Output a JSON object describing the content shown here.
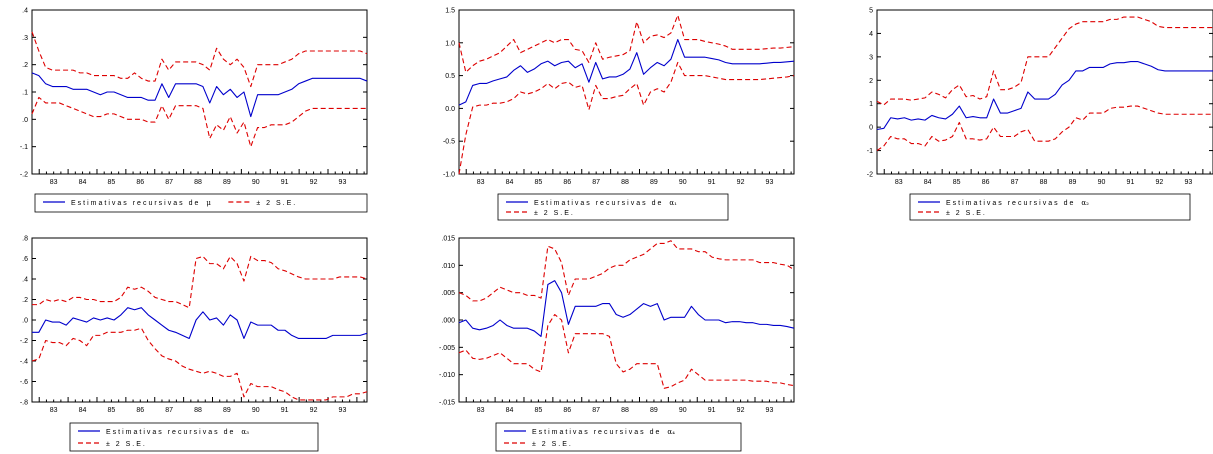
{
  "colors": {
    "estimate": "#0000cc",
    "band": "#dd0000",
    "axis": "#000000"
  },
  "chart_data": [
    {
      "type": "line",
      "x_tick_labels": [
        "83",
        "84",
        "85",
        "86",
        "87",
        "88",
        "89",
        "90",
        "91",
        "92",
        "93"
      ],
      "y_tick_labels": [
        ".4",
        ".3",
        ".2",
        ".1",
        ".0",
        "-.1",
        "-.2"
      ],
      "ylim": [
        -0.2,
        0.4
      ],
      "legend": {
        "estimate_label": "Estimativas recursivas de",
        "estimate_symbol": "μ",
        "band_label": "± 2 S.E.",
        "layout": "one-row"
      },
      "estimate": [
        0.17,
        0.16,
        0.13,
        0.12,
        0.12,
        0.12,
        0.11,
        0.11,
        0.11,
        0.1,
        0.09,
        0.1,
        0.1,
        0.09,
        0.08,
        0.08,
        0.08,
        0.07,
        0.07,
        0.13,
        0.08,
        0.13,
        0.13,
        0.13,
        0.13,
        0.12,
        0.06,
        0.12,
        0.09,
        0.11,
        0.08,
        0.1,
        0.01,
        0.09,
        0.09,
        0.09,
        0.09,
        0.1,
        0.11,
        0.13,
        0.14,
        0.15,
        0.15,
        0.15,
        0.15,
        0.15,
        0.15,
        0.15,
        0.15,
        0.14
      ],
      "upper": [
        0.32,
        0.25,
        0.19,
        0.18,
        0.18,
        0.18,
        0.18,
        0.17,
        0.17,
        0.16,
        0.16,
        0.16,
        0.16,
        0.15,
        0.15,
        0.17,
        0.15,
        0.14,
        0.14,
        0.22,
        0.18,
        0.21,
        0.21,
        0.21,
        0.21,
        0.2,
        0.18,
        0.26,
        0.22,
        0.2,
        0.22,
        0.19,
        0.12,
        0.2,
        0.2,
        0.2,
        0.2,
        0.21,
        0.22,
        0.24,
        0.25,
        0.25,
        0.25,
        0.25,
        0.25,
        0.25,
        0.25,
        0.25,
        0.25,
        0.24
      ],
      "lower": [
        0.02,
        0.08,
        0.06,
        0.06,
        0.06,
        0.05,
        0.04,
        0.03,
        0.02,
        0.01,
        0.01,
        0.02,
        0.02,
        0.01,
        0.0,
        0.0,
        0.0,
        -0.01,
        -0.01,
        0.05,
        0.0,
        0.05,
        0.05,
        0.05,
        0.05,
        0.04,
        -0.07,
        -0.02,
        -0.04,
        0.01,
        -0.05,
        -0.01,
        -0.1,
        -0.03,
        -0.03,
        -0.02,
        -0.02,
        -0.02,
        -0.01,
        0.01,
        0.03,
        0.04,
        0.04,
        0.04,
        0.04,
        0.04,
        0.04,
        0.04,
        0.04,
        0.04
      ]
    },
    {
      "type": "line",
      "x_tick_labels": [
        "83",
        "84",
        "85",
        "86",
        "87",
        "88",
        "89",
        "90",
        "91",
        "92",
        "93"
      ],
      "y_tick_labels": [
        "1.5",
        "1.0",
        "0.5",
        "0.0",
        "-0.5",
        "-1.0"
      ],
      "ylim": [
        -1.0,
        1.5
      ],
      "legend": {
        "estimate_label": "Estimativas recursivas de",
        "estimate_symbol": "α₁",
        "band_label": "± 2 S.E.",
        "layout": "two-row"
      },
      "estimate": [
        0.05,
        0.1,
        0.35,
        0.38,
        0.38,
        0.42,
        0.45,
        0.48,
        0.58,
        0.65,
        0.55,
        0.6,
        0.68,
        0.72,
        0.65,
        0.7,
        0.72,
        0.62,
        0.68,
        0.4,
        0.7,
        0.45,
        0.48,
        0.48,
        0.52,
        0.6,
        0.85,
        0.52,
        0.62,
        0.7,
        0.65,
        0.75,
        1.05,
        0.78,
        0.78,
        0.78,
        0.78,
        0.76,
        0.74,
        0.7,
        0.68,
        0.68,
        0.68,
        0.68,
        0.68,
        0.69,
        0.7,
        0.7,
        0.71,
        0.72
      ],
      "upper": [
        1.0,
        0.55,
        0.65,
        0.72,
        0.75,
        0.8,
        0.85,
        0.95,
        1.05,
        0.85,
        0.9,
        0.95,
        1.0,
        1.05,
        1.0,
        1.05,
        1.05,
        0.9,
        0.88,
        0.7,
        1.0,
        0.75,
        0.78,
        0.8,
        0.82,
        0.88,
        1.32,
        1.0,
        1.1,
        1.12,
        1.08,
        1.15,
        1.42,
        1.05,
        1.05,
        1.05,
        1.02,
        1.0,
        0.98,
        0.95,
        0.9,
        0.9,
        0.9,
        0.9,
        0.9,
        0.91,
        0.92,
        0.92,
        0.93,
        0.94
      ],
      "lower": [
        -1.0,
        -0.4,
        0.02,
        0.05,
        0.05,
        0.08,
        0.08,
        0.1,
        0.15,
        0.25,
        0.22,
        0.25,
        0.3,
        0.38,
        0.3,
        0.38,
        0.4,
        0.32,
        0.35,
        -0.02,
        0.35,
        0.15,
        0.15,
        0.18,
        0.2,
        0.3,
        0.38,
        0.05,
        0.25,
        0.3,
        0.25,
        0.4,
        0.7,
        0.5,
        0.5,
        0.5,
        0.5,
        0.48,
        0.46,
        0.44,
        0.44,
        0.44,
        0.44,
        0.44,
        0.44,
        0.45,
        0.46,
        0.47,
        0.48,
        0.5
      ]
    },
    {
      "type": "line",
      "x_tick_labels": [
        "83",
        "84",
        "85",
        "86",
        "87",
        "88",
        "89",
        "90",
        "91",
        "92",
        "93"
      ],
      "y_tick_labels": [
        "5",
        "4",
        "3",
        "2",
        "1",
        "0",
        "-1",
        "-2"
      ],
      "ylim": [
        -2,
        5
      ],
      "legend": {
        "estimate_label": "Estimativas recursivas de",
        "estimate_symbol": "α₂",
        "band_label": "± 2 S.E.",
        "layout": "two-row"
      },
      "estimate": [
        -0.1,
        -0.05,
        0.4,
        0.35,
        0.4,
        0.3,
        0.35,
        0.3,
        0.5,
        0.4,
        0.35,
        0.55,
        0.9,
        0.4,
        0.45,
        0.4,
        0.4,
        1.2,
        0.6,
        0.6,
        0.7,
        0.8,
        1.5,
        1.2,
        1.2,
        1.2,
        1.4,
        1.8,
        2.0,
        2.4,
        2.4,
        2.55,
        2.55,
        2.55,
        2.7,
        2.75,
        2.75,
        2.8,
        2.8,
        2.7,
        2.6,
        2.45,
        2.4,
        2.4,
        2.4,
        2.4,
        2.4,
        2.4,
        2.4,
        2.4
      ],
      "upper": [
        1.1,
        0.95,
        1.2,
        1.2,
        1.2,
        1.15,
        1.2,
        1.25,
        1.5,
        1.4,
        1.25,
        1.6,
        1.8,
        1.3,
        1.35,
        1.2,
        1.3,
        2.4,
        1.6,
        1.6,
        1.7,
        1.9,
        3.0,
        3.0,
        3.0,
        3.0,
        3.4,
        3.8,
        4.2,
        4.4,
        4.5,
        4.5,
        4.5,
        4.5,
        4.6,
        4.6,
        4.7,
        4.7,
        4.7,
        4.6,
        4.5,
        4.3,
        4.25,
        4.25,
        4.25,
        4.25,
        4.25,
        4.25,
        4.25,
        4.25
      ],
      "lower": [
        -1.0,
        -0.8,
        -0.4,
        -0.5,
        -0.5,
        -0.7,
        -0.7,
        -0.8,
        -0.4,
        -0.6,
        -0.55,
        -0.4,
        0.2,
        -0.5,
        -0.5,
        -0.55,
        -0.5,
        0.0,
        -0.4,
        -0.4,
        -0.4,
        -0.2,
        -0.1,
        -0.6,
        -0.6,
        -0.6,
        -0.5,
        -0.2,
        0.0,
        0.4,
        0.3,
        0.6,
        0.6,
        0.6,
        0.8,
        0.85,
        0.85,
        0.9,
        0.9,
        0.8,
        0.7,
        0.6,
        0.55,
        0.55,
        0.55,
        0.55,
        0.55,
        0.55,
        0.55,
        0.55
      ]
    },
    {
      "type": "line",
      "x_tick_labels": [
        "83",
        "84",
        "85",
        "86",
        "87",
        "88",
        "89",
        "90",
        "91",
        "92",
        "93"
      ],
      "y_tick_labels": [
        ".8",
        ".6",
        ".4",
        ".2",
        ".0",
        "-.2",
        "-.4",
        "-.6",
        "-.8"
      ],
      "ylim": [
        -0.8,
        0.8
      ],
      "legend": {
        "estimate_label": "Estimativas recursivas de",
        "estimate_symbol": "α₃",
        "band_label": "± 2 S.E.",
        "layout": "two-row"
      },
      "estimate": [
        -0.12,
        -0.12,
        0.0,
        -0.02,
        -0.02,
        -0.05,
        0.02,
        0.0,
        -0.02,
        0.02,
        0.0,
        0.02,
        0.0,
        0.05,
        0.12,
        0.1,
        0.12,
        0.05,
        0.0,
        -0.05,
        -0.1,
        -0.12,
        -0.15,
        -0.18,
        0.0,
        0.08,
        0.0,
        0.02,
        -0.05,
        0.05,
        0.0,
        -0.18,
        -0.02,
        -0.05,
        -0.05,
        -0.05,
        -0.1,
        -0.1,
        -0.15,
        -0.18,
        -0.18,
        -0.18,
        -0.18,
        -0.18,
        -0.15,
        -0.15,
        -0.15,
        -0.15,
        -0.15,
        -0.13
      ],
      "upper": [
        0.15,
        0.15,
        0.2,
        0.18,
        0.2,
        0.18,
        0.22,
        0.22,
        0.2,
        0.2,
        0.18,
        0.18,
        0.18,
        0.22,
        0.32,
        0.3,
        0.32,
        0.28,
        0.22,
        0.2,
        0.18,
        0.18,
        0.15,
        0.12,
        0.6,
        0.62,
        0.55,
        0.55,
        0.5,
        0.62,
        0.55,
        0.38,
        0.62,
        0.58,
        0.58,
        0.56,
        0.5,
        0.48,
        0.45,
        0.42,
        0.4,
        0.4,
        0.4,
        0.4,
        0.4,
        0.42,
        0.42,
        0.42,
        0.42,
        0.4
      ],
      "lower": [
        -0.4,
        -0.38,
        -0.2,
        -0.22,
        -0.22,
        -0.25,
        -0.18,
        -0.2,
        -0.25,
        -0.15,
        -0.15,
        -0.12,
        -0.12,
        -0.12,
        -0.1,
        -0.1,
        -0.08,
        -0.2,
        -0.28,
        -0.35,
        -0.38,
        -0.4,
        -0.45,
        -0.48,
        -0.5,
        -0.52,
        -0.5,
        -0.52,
        -0.55,
        -0.55,
        -0.52,
        -0.75,
        -0.62,
        -0.65,
        -0.65,
        -0.65,
        -0.68,
        -0.7,
        -0.75,
        -0.78,
        -0.78,
        -0.78,
        -0.78,
        -0.78,
        -0.75,
        -0.75,
        -0.75,
        -0.72,
        -0.72,
        -0.7
      ]
    },
    {
      "type": "line",
      "x_tick_labels": [
        "83",
        "84",
        "85",
        "86",
        "87",
        "88",
        "89",
        "90",
        "91",
        "92",
        "93"
      ],
      "y_tick_labels": [
        ".015",
        ".010",
        ".005",
        ".000",
        "-.005",
        "-.010",
        "-.015"
      ],
      "ylim": [
        -0.015,
        0.015
      ],
      "legend": {
        "estimate_label": "Estimativas recursivas de",
        "estimate_symbol": "α₄",
        "band_label": "± 2 S.E.",
        "layout": "two-row"
      },
      "estimate": [
        -0.0005,
        0.0,
        -0.0015,
        -0.0018,
        -0.0015,
        -0.001,
        0.0,
        -0.001,
        -0.0015,
        -0.0015,
        -0.0015,
        -0.002,
        -0.003,
        0.0065,
        0.0072,
        0.005,
        -0.0008,
        0.0025,
        0.0025,
        0.0025,
        0.0025,
        0.003,
        0.003,
        0.001,
        0.0005,
        0.001,
        0.002,
        0.003,
        0.0025,
        0.003,
        0.0,
        0.0005,
        0.0005,
        0.0005,
        0.0025,
        0.001,
        0.0,
        0.0,
        0.0,
        -0.0005,
        -0.0003,
        -0.0003,
        -0.0005,
        -0.0005,
        -0.0008,
        -0.0008,
        -0.001,
        -0.001,
        -0.0012,
        -0.0015
      ],
      "upper": [
        0.005,
        0.0045,
        0.0035,
        0.0035,
        0.004,
        0.005,
        0.006,
        0.0055,
        0.005,
        0.005,
        0.0045,
        0.0045,
        0.004,
        0.0135,
        0.013,
        0.0105,
        0.0045,
        0.0075,
        0.0075,
        0.0075,
        0.008,
        0.0085,
        0.0095,
        0.01,
        0.01,
        0.011,
        0.0115,
        0.012,
        0.013,
        0.014,
        0.014,
        0.0145,
        0.013,
        0.013,
        0.013,
        0.0125,
        0.0125,
        0.0115,
        0.0112,
        0.011,
        0.011,
        0.011,
        0.011,
        0.011,
        0.0105,
        0.0105,
        0.0105,
        0.0102,
        0.01,
        0.0092
      ],
      "lower": [
        -0.006,
        -0.0055,
        -0.007,
        -0.0072,
        -0.007,
        -0.0065,
        -0.006,
        -0.007,
        -0.008,
        -0.008,
        -0.008,
        -0.009,
        -0.0095,
        -0.001,
        0.001,
        0.0,
        -0.006,
        -0.0025,
        -0.0025,
        -0.0025,
        -0.0025,
        -0.0025,
        -0.003,
        -0.008,
        -0.0095,
        -0.009,
        -0.008,
        -0.008,
        -0.008,
        -0.008,
        -0.0125,
        -0.0122,
        -0.0115,
        -0.011,
        -0.009,
        -0.01,
        -0.011,
        -0.011,
        -0.011,
        -0.011,
        -0.011,
        -0.011,
        -0.011,
        -0.0112,
        -0.0112,
        -0.0112,
        -0.0115,
        -0.0115,
        -0.0118,
        -0.012
      ]
    }
  ]
}
